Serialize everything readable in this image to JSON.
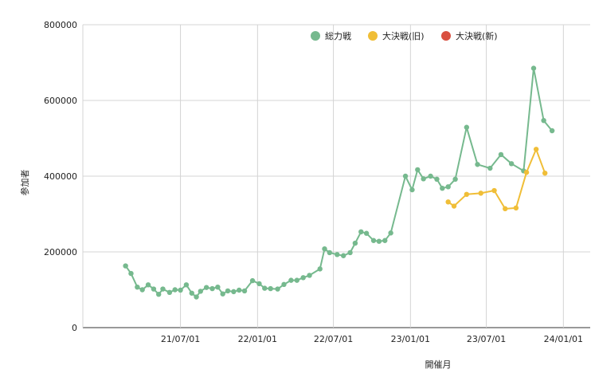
{
  "chart_data": {
    "type": "line",
    "xlabel": "開催月",
    "ylabel": "参加者",
    "legend_position": "top-right",
    "grid": true,
    "ylim": [
      0,
      800000
    ],
    "xlim": [
      "2020-11-10",
      "2024-03-05"
    ],
    "y_ticks": [
      0,
      200000,
      400000,
      600000,
      800000
    ],
    "y_tick_labels": [
      "0",
      "200000",
      "400000",
      "600000",
      "800000"
    ],
    "x_ticks": [
      "2021-07-01",
      "2022-01-01",
      "2022-07-01",
      "2023-01-01",
      "2023-07-01",
      "2024-01-01"
    ],
    "x_tick_labels": [
      "21/07/01",
      "22/01/01",
      "22/07/01",
      "23/01/01",
      "23/07/01",
      "24/01/01"
    ],
    "series": [
      {
        "name": "総力戦",
        "color": "#76b98e",
        "points": [
          [
            "2021-02-20",
            163000
          ],
          [
            "2021-03-05",
            143000
          ],
          [
            "2021-03-20",
            107000
          ],
          [
            "2021-04-01",
            100000
          ],
          [
            "2021-04-15",
            113000
          ],
          [
            "2021-04-28",
            102000
          ],
          [
            "2021-05-10",
            88000
          ],
          [
            "2021-05-20",
            102000
          ],
          [
            "2021-06-05",
            93000
          ],
          [
            "2021-06-18",
            100000
          ],
          [
            "2021-07-01",
            99000
          ],
          [
            "2021-07-15",
            113000
          ],
          [
            "2021-07-28",
            91000
          ],
          [
            "2021-08-08",
            81000
          ],
          [
            "2021-08-18",
            96000
          ],
          [
            "2021-09-01",
            106000
          ],
          [
            "2021-09-15",
            103000
          ],
          [
            "2021-09-28",
            107000
          ],
          [
            "2021-10-10",
            89000
          ],
          [
            "2021-10-22",
            97000
          ],
          [
            "2021-11-05",
            95000
          ],
          [
            "2021-11-18",
            99000
          ],
          [
            "2021-12-01",
            97000
          ],
          [
            "2021-12-20",
            124000
          ],
          [
            "2022-01-05",
            116000
          ],
          [
            "2022-01-18",
            104000
          ],
          [
            "2022-02-01",
            103000
          ],
          [
            "2022-02-18",
            102000
          ],
          [
            "2022-03-05",
            114000
          ],
          [
            "2022-03-22",
            125000
          ],
          [
            "2022-04-05",
            125000
          ],
          [
            "2022-04-20",
            132000
          ],
          [
            "2022-05-05",
            138000
          ],
          [
            "2022-05-30",
            155000
          ],
          [
            "2022-06-10",
            208000
          ],
          [
            "2022-06-22",
            198000
          ],
          [
            "2022-07-10",
            193000
          ],
          [
            "2022-07-25",
            190000
          ],
          [
            "2022-08-10",
            198000
          ],
          [
            "2022-08-22",
            223000
          ],
          [
            "2022-09-05",
            253000
          ],
          [
            "2022-09-18",
            249000
          ],
          [
            "2022-10-05",
            230000
          ],
          [
            "2022-10-18",
            228000
          ],
          [
            "2022-11-01",
            230000
          ],
          [
            "2022-11-15",
            250000
          ],
          [
            "2022-12-20",
            400000
          ],
          [
            "2023-01-05",
            364000
          ],
          [
            "2023-01-18",
            417000
          ],
          [
            "2023-02-01",
            393000
          ],
          [
            "2023-02-18",
            400000
          ],
          [
            "2023-03-05",
            392000
          ],
          [
            "2023-03-18",
            368000
          ],
          [
            "2023-04-01",
            372000
          ],
          [
            "2023-04-18",
            392000
          ],
          [
            "2023-05-15",
            529000
          ],
          [
            "2023-06-10",
            431000
          ],
          [
            "2023-07-10",
            421000
          ],
          [
            "2023-08-05",
            457000
          ],
          [
            "2023-08-30",
            433000
          ],
          [
            "2023-09-28",
            414000
          ],
          [
            "2023-10-22",
            685000
          ],
          [
            "2023-11-15",
            547000
          ],
          [
            "2023-12-05",
            520000
          ]
        ]
      },
      {
        "name": "大決戦(旧)",
        "color": "#f0be37",
        "points": [
          [
            "2023-04-01",
            332000
          ],
          [
            "2023-04-15",
            321000
          ],
          [
            "2023-05-15",
            352000
          ],
          [
            "2023-06-18",
            355000
          ],
          [
            "2023-07-20",
            362000
          ],
          [
            "2023-08-15",
            314000
          ],
          [
            "2023-09-10",
            316000
          ],
          [
            "2023-10-05",
            410000
          ],
          [
            "2023-10-28",
            471000
          ],
          [
            "2023-11-18",
            408000
          ]
        ]
      },
      {
        "name": "大決戦(新)",
        "color": "#d95040",
        "points": []
      }
    ]
  }
}
